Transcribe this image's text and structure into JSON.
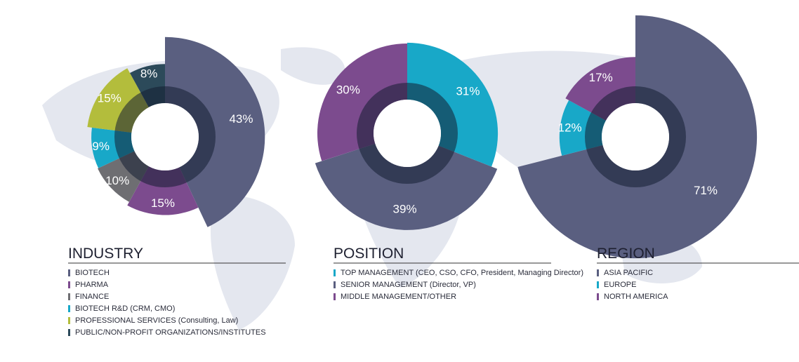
{
  "chart_data": [
    {
      "type": "pie",
      "title": "INDUSTRY",
      "categories": [
        "BIOTECH",
        "PHARMA",
        "FINANCE",
        "BIOTECH R&D (CRM, CMO)",
        "PROFESSIONAL SERVICES (Consulting, Law)",
        "PUBLIC/NON-PROFIT ORGANIZATIONS/INSTITUTES"
      ],
      "values": [
        43,
        15,
        10,
        9,
        15,
        8
      ],
      "value_labels": [
        "43%",
        "15%",
        "10%",
        "9%",
        "15%",
        "8%"
      ],
      "colors": [
        "#5a5f80",
        "#7c4b8e",
        "#6e6e72",
        "#18a8c8",
        "#b3bd3c",
        "#2c4a5a"
      ]
    },
    {
      "type": "pie",
      "title": "POSITION",
      "categories": [
        "TOP MANAGEMENT (CEO, CSO, CFO, President, Managing Director)",
        "SENIOR MANAGEMENT (Director, VP)",
        "MIDDLE MANAGEMENT/OTHER"
      ],
      "values": [
        31,
        39,
        30
      ],
      "value_labels": [
        "31%",
        "39%",
        "30%"
      ],
      "colors": [
        "#18a8c8",
        "#5a5f80",
        "#7c4b8e"
      ]
    },
    {
      "type": "pie",
      "title": "REGION",
      "categories": [
        "ASIA PACIFIC",
        "EUROPE",
        "NORTH AMERICA"
      ],
      "values": [
        71,
        12,
        17
      ],
      "value_labels": [
        "71%",
        "12%",
        "17%"
      ],
      "colors": [
        "#5a5f80",
        "#18a8c8",
        "#7c4b8e"
      ]
    }
  ]
}
